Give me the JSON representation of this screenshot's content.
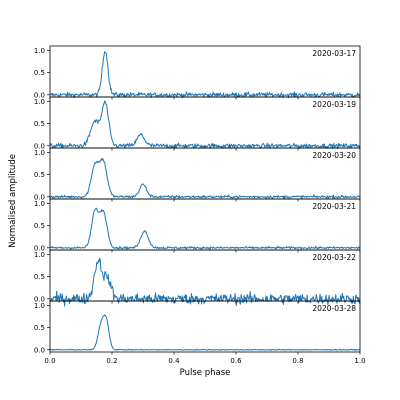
{
  "chart_data": {
    "type": "line",
    "xlabel": "Pulse phase",
    "ylabel": "Normalised amplitude",
    "xlim": [
      0.0,
      1.0
    ],
    "ylim": [
      -0.05,
      1.1
    ],
    "x_ticks": [
      "0.0",
      "0.2",
      "0.4",
      "0.6",
      "0.8",
      "1.0"
    ],
    "y_ticks": [
      "0.0",
      "0.5",
      "1.0"
    ],
    "line_color": "#1f77b4",
    "grid": false,
    "legend": "none",
    "panels": [
      {
        "label": "2020-03-17",
        "noise": 0.05,
        "components": [
          {
            "center": 0.178,
            "width": 0.009,
            "amp": 1.0
          }
        ]
      },
      {
        "label": "2020-03-19",
        "noise": 0.05,
        "components": [
          {
            "center": 0.145,
            "width": 0.014,
            "amp": 0.55
          },
          {
            "center": 0.178,
            "width": 0.011,
            "amp": 0.95
          },
          {
            "center": 0.293,
            "width": 0.012,
            "amp": 0.25
          }
        ]
      },
      {
        "label": "2020-03-20",
        "noise": 0.03,
        "components": [
          {
            "center": 0.145,
            "width": 0.012,
            "amp": 0.7
          },
          {
            "center": 0.172,
            "width": 0.012,
            "amp": 0.78
          },
          {
            "center": 0.3,
            "width": 0.011,
            "amp": 0.28
          }
        ]
      },
      {
        "label": "2020-03-21",
        "noise": 0.025,
        "components": [
          {
            "center": 0.145,
            "width": 0.011,
            "amp": 0.8
          },
          {
            "center": 0.172,
            "width": 0.012,
            "amp": 0.8
          },
          {
            "center": 0.305,
            "width": 0.012,
            "amp": 0.38
          }
        ]
      },
      {
        "label": "2020-03-22",
        "noise": 0.12,
        "components": [
          {
            "center": 0.155,
            "width": 0.012,
            "amp": 0.85
          },
          {
            "center": 0.185,
            "width": 0.012,
            "amp": 0.45
          }
        ]
      },
      {
        "label": "2020-03-28",
        "noise": 0.01,
        "components": [
          {
            "center": 0.165,
            "width": 0.01,
            "amp": 0.55
          },
          {
            "center": 0.182,
            "width": 0.009,
            "amp": 0.6
          }
        ]
      }
    ]
  }
}
